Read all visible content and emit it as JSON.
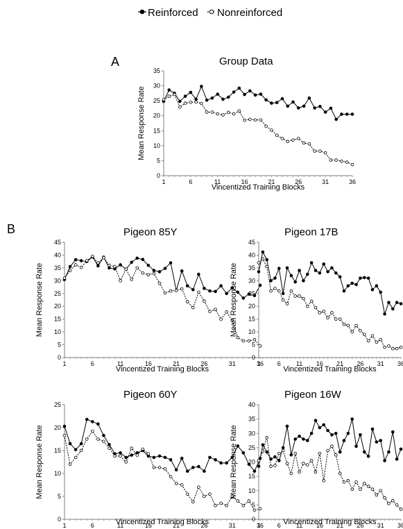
{
  "legend": {
    "entries": [
      {
        "label": "Reinforced",
        "marker": "filled",
        "color": "#000000"
      },
      {
        "label": "Nonreinforced",
        "marker": "open",
        "color": "#000000"
      }
    ]
  },
  "panels": {
    "a": {
      "letter": "A"
    },
    "b": {
      "letter": "B"
    }
  },
  "chart_data": [
    {
      "type": "line",
      "title": "Group Data",
      "xlabel": "Vincentized Training Blocks",
      "ylabel": "Mean Response Rate",
      "xlim": [
        1,
        36
      ],
      "ylim": [
        0,
        35
      ],
      "yticks": [
        0,
        5,
        10,
        15,
        20,
        25,
        30,
        35
      ],
      "xticks": [
        1,
        6,
        11,
        16,
        21,
        26,
        31,
        36
      ],
      "grid": false,
      "x": [
        1,
        2,
        3,
        4,
        5,
        6,
        7,
        8,
        9,
        10,
        11,
        12,
        13,
        14,
        15,
        16,
        17,
        18,
        19,
        20,
        21,
        22,
        23,
        24,
        25,
        26,
        27,
        28,
        29,
        30,
        31,
        32,
        33,
        34,
        35,
        36
      ],
      "series": [
        {
          "name": "Reinforced",
          "values": [
            24.8,
            28.6,
            27.5,
            24.8,
            26.5,
            27.8,
            25.5,
            29.8,
            25.2,
            25.9,
            27.2,
            25.5,
            26.2,
            27.9,
            29.2,
            27.1,
            28.3,
            26.9,
            27.2,
            25.3,
            24.2,
            24.4,
            25.7,
            23.2,
            24.6,
            22.6,
            23.2,
            25.9,
            22.6,
            23.1,
            21.2,
            22.5,
            18.8,
            20.5,
            20.5,
            20.5
          ]
        },
        {
          "name": "Nonreinforced",
          "values": [
            25.4,
            26.5,
            27.1,
            22.9,
            24.2,
            24.5,
            24.6,
            24.1,
            21.2,
            21.2,
            20.6,
            20.3,
            21.1,
            20.6,
            21.6,
            18.5,
            18.8,
            18.6,
            18.6,
            16.5,
            15.2,
            13.5,
            12.4,
            11.4,
            11.9,
            12.4,
            10.9,
            10.6,
            8.2,
            8.2,
            7.6,
            5.2,
            5.2,
            4.8,
            4.5,
            3.7
          ]
        }
      ]
    },
    {
      "type": "line",
      "title": "Pigeon 85Y",
      "xlabel": "Vincentized Training Blocks",
      "ylabel": "Mean Response Rate",
      "xlim": [
        1,
        36
      ],
      "ylim": [
        0,
        45
      ],
      "yticks": [
        0,
        5,
        10,
        15,
        20,
        25,
        30,
        35,
        40,
        45
      ],
      "xticks": [
        1,
        6,
        11,
        16,
        21,
        26,
        31,
        36
      ],
      "grid": false,
      "x": [
        1,
        2,
        3,
        4,
        5,
        6,
        7,
        8,
        9,
        10,
        11,
        12,
        13,
        14,
        15,
        16,
        17,
        18,
        19,
        20,
        21,
        22,
        23,
        24,
        25,
        26,
        27,
        28,
        29,
        30,
        31,
        32,
        33,
        34,
        35,
        36
      ],
      "series": [
        {
          "name": "Reinforced",
          "values": [
            30.5,
            35.5,
            38.2,
            37.8,
            37.5,
            39.3,
            35.8,
            39.2,
            35.0,
            34.6,
            36.2,
            34.5,
            37.2,
            38.8,
            38.3,
            36.0,
            34.0,
            33.5,
            34.8,
            37.0,
            26.2,
            33.8,
            28.0,
            26.5,
            32.5,
            27.0,
            26.0,
            25.8,
            28.0,
            25.0,
            27.2,
            25.5,
            23.2,
            24.8,
            24.2,
            28.2
          ]
        },
        {
          "name": "Nonreinforced",
          "values": [
            31.0,
            34.0,
            36.2,
            35.2,
            37.8,
            39.5,
            37.0,
            39.0,
            36.0,
            35.5,
            30.0,
            34.5,
            30.5,
            35.0,
            33.0,
            32.3,
            32.8,
            29.0,
            25.2,
            26.0,
            26.2,
            26.8,
            21.8,
            19.5,
            25.5,
            22.0,
            18.0,
            18.8,
            15.0,
            17.8,
            14.5,
            7.8,
            6.5,
            6.5,
            7.0,
            4.5
          ]
        }
      ]
    },
    {
      "type": "line",
      "title": "Pigeon 17B",
      "xlabel": "Vincentized Training Blocks",
      "ylabel": "Mean Response Rate",
      "xlim": [
        1,
        36
      ],
      "ylim": [
        0,
        45
      ],
      "yticks": [
        0,
        5,
        10,
        15,
        20,
        25,
        30,
        35,
        40,
        45
      ],
      "xticks": [
        1,
        6,
        11,
        16,
        21,
        26,
        31,
        36
      ],
      "grid": false,
      "x": [
        1,
        2,
        3,
        4,
        5,
        6,
        7,
        8,
        9,
        10,
        11,
        12,
        13,
        14,
        15,
        16,
        17,
        18,
        19,
        20,
        21,
        22,
        23,
        24,
        25,
        26,
        27,
        28,
        29,
        30,
        31,
        32,
        33,
        34,
        35,
        36
      ],
      "series": [
        {
          "name": "Reinforced",
          "values": [
            33.5,
            41.2,
            38.2,
            30.0,
            31.0,
            34.8,
            25.0,
            35.0,
            32.0,
            29.5,
            34.0,
            30.0,
            32.5,
            37.0,
            34.0,
            33.0,
            36.5,
            33.5,
            35.0,
            33.0,
            31.5,
            26.0,
            28.0,
            29.0,
            28.5,
            31.0,
            31.2,
            31.0,
            26.5,
            28.0,
            25.5,
            17.0,
            21.5,
            19.0,
            21.5,
            21.0
          ]
        },
        {
          "name": "Nonreinforced",
          "values": [
            37.0,
            38.5,
            35.5,
            26.0,
            27.0,
            26.0,
            22.5,
            21.0,
            26.0,
            24.0,
            24.0,
            23.0,
            20.0,
            22.0,
            19.5,
            17.5,
            18.0,
            15.5,
            17.5,
            15.0,
            15.0,
            13.0,
            12.5,
            10.0,
            12.5,
            10.5,
            9.0,
            6.5,
            8.5,
            6.0,
            7.0,
            4.0,
            4.5,
            3.5,
            3.5,
            4.0
          ]
        }
      ]
    },
    {
      "type": "line",
      "title": "Pigeon 60Y",
      "xlabel": "Vincentized Training Blocks",
      "ylabel": "Mean Response Rate",
      "xlim": [
        1,
        36
      ],
      "ylim": [
        0,
        25
      ],
      "yticks": [
        0,
        5,
        10,
        15,
        20,
        25
      ],
      "xticks": [
        1,
        6,
        11,
        16,
        21,
        26,
        31,
        36
      ],
      "grid": false,
      "x": [
        1,
        2,
        3,
        4,
        5,
        6,
        7,
        8,
        9,
        10,
        11,
        12,
        13,
        14,
        15,
        16,
        17,
        18,
        19,
        20,
        21,
        22,
        23,
        24,
        25,
        26,
        27,
        28,
        29,
        30,
        31,
        32,
        33,
        34,
        35,
        36
      ],
      "series": [
        {
          "name": "Reinforced",
          "values": [
            20.3,
            16.5,
            15.2,
            16.5,
            21.8,
            21.3,
            20.8,
            18.3,
            16.3,
            14.3,
            14.5,
            13.5,
            14.0,
            14.5,
            15.0,
            13.8,
            13.5,
            13.8,
            13.5,
            13.0,
            10.8,
            13.3,
            10.5,
            11.3,
            11.5,
            10.5,
            13.5,
            13.0,
            12.3,
            12.3,
            13.5,
            16.0,
            14.5,
            12.0,
            10.5,
            13.3
          ]
        },
        {
          "name": "Nonreinforced",
          "values": [
            18.3,
            12.0,
            13.5,
            15.0,
            17.5,
            19.2,
            17.5,
            17.0,
            15.5,
            13.8,
            13.8,
            12.5,
            15.5,
            14.0,
            15.3,
            14.3,
            11.3,
            11.3,
            11.0,
            9.3,
            7.8,
            7.5,
            5.5,
            3.8,
            7.0,
            5.0,
            5.5,
            3.0,
            3.5,
            3.0,
            5.0,
            4.0,
            3.0,
            4.0,
            2.0,
            2.3
          ]
        }
      ]
    },
    {
      "type": "line",
      "title": "Pigeon 16W",
      "xlabel": "Vincentized Training Blocks",
      "ylabel": "Mean Response Rate",
      "xlim": [
        1,
        36
      ],
      "ylim": [
        0,
        40
      ],
      "yticks": [
        0,
        5,
        10,
        15,
        20,
        25,
        30,
        35,
        40
      ],
      "xticks": [
        1,
        6,
        11,
        16,
        21,
        26,
        31,
        36
      ],
      "grid": false,
      "x": [
        1,
        2,
        3,
        4,
        5,
        6,
        7,
        8,
        9,
        10,
        11,
        12,
        13,
        14,
        15,
        16,
        17,
        18,
        19,
        20,
        21,
        22,
        23,
        24,
        25,
        26,
        27,
        28,
        29,
        30,
        31,
        32,
        33,
        34,
        35,
        36
      ],
      "series": [
        {
          "name": "Reinforced",
          "values": [
            18.5,
            26.0,
            23.5,
            21.0,
            21.8,
            20.5,
            25.0,
            32.5,
            22.5,
            28.0,
            29.0,
            28.0,
            27.5,
            30.0,
            34.5,
            32.0,
            33.0,
            31.0,
            29.5,
            30.0,
            23.5,
            27.5,
            30.0,
            35.0,
            25.5,
            29.5,
            23.5,
            22.0,
            31.5,
            27.0,
            27.5,
            20.5,
            23.5,
            30.5,
            21.0,
            24.5
          ]
        },
        {
          "name": "Nonreinforced",
          "values": [
            20.5,
            23.8,
            28.5,
            18.5,
            18.8,
            23.0,
            24.0,
            19.5,
            16.0,
            23.0,
            16.5,
            19.5,
            19.0,
            20.5,
            16.5,
            23.0,
            13.5,
            24.0,
            25.5,
            22.5,
            16.0,
            13.0,
            13.5,
            10.5,
            13.0,
            10.5,
            12.5,
            11.5,
            10.5,
            8.5,
            10.0,
            7.5,
            5.5,
            6.5,
            5.0,
            3.5
          ]
        }
      ]
    }
  ]
}
